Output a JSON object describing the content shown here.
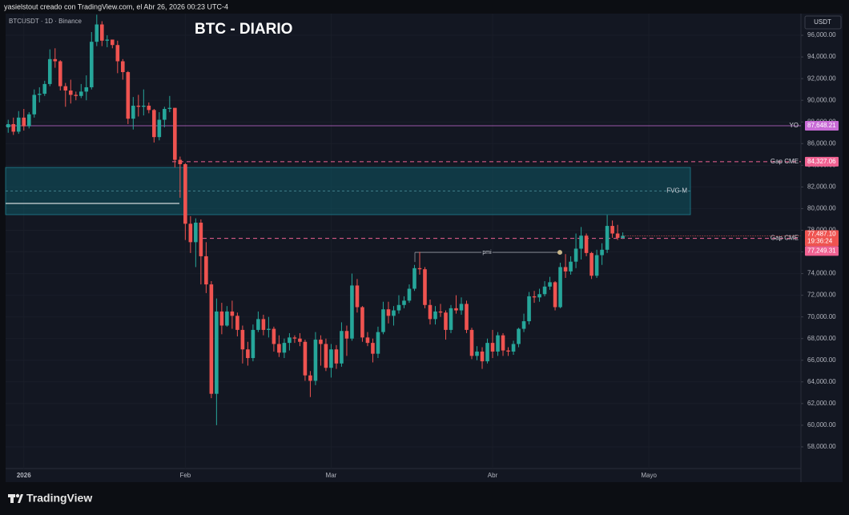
{
  "header": {
    "attribution": "yasielstout creado con TradingView.com, el Abr 26, 2026 00:23 UTC-4"
  },
  "footer": {
    "logo": "TradingView"
  },
  "chart_data": {
    "type": "candlestick",
    "symbol": "BTCUSDT · 1D · Binance",
    "title": "BTC - DIARIO",
    "currency": "USDT",
    "up_color": "#26a69a",
    "down_color": "#ef5350",
    "xlim": [
      -0.5,
      152.2
    ],
    "xticks": [
      {
        "value": 3,
        "label": "2026"
      },
      {
        "value": 34,
        "label": "Feb"
      },
      {
        "value": 62,
        "label": "Mar"
      },
      {
        "value": 93,
        "label": "Abr"
      },
      {
        "value": 123,
        "label": "Mayo"
      }
    ],
    "ylim": [
      56000,
      98000
    ],
    "yticks": [
      {
        "value": 58000,
        "label": "58,000.00"
      },
      {
        "value": 60000,
        "label": "60,000.00"
      },
      {
        "value": 62000,
        "label": "62,000.00"
      },
      {
        "value": 64000,
        "label": "64,000.00"
      },
      {
        "value": 66000,
        "label": "66,000.00"
      },
      {
        "value": 68000,
        "label": "68,000.00"
      },
      {
        "value": 70000,
        "label": "70,000.00"
      },
      {
        "value": 72000,
        "label": "72,000.00"
      },
      {
        "value": 74000,
        "label": "74,000.00"
      },
      {
        "value": 76000,
        "label": "76,000.00"
      },
      {
        "value": 78000,
        "label": "78,000.00"
      },
      {
        "value": 80000,
        "label": "80,000.00"
      },
      {
        "value": 82000,
        "label": "82,000.00"
      },
      {
        "value": 84000,
        "label": "84,000.00"
      },
      {
        "value": 86000,
        "label": "86,000.00"
      },
      {
        "value": 88000,
        "label": "88,000.00"
      },
      {
        "value": 90000,
        "label": "90,000.00"
      },
      {
        "value": 92000,
        "label": "92,000.00"
      },
      {
        "value": 94000,
        "label": "94,000.00"
      },
      {
        "value": 96000,
        "label": "96,000.00"
      }
    ],
    "grid": true,
    "open": [
      87500,
      87800,
      87100,
      88400,
      87600,
      88700,
      90500,
      90600,
      91500,
      93800,
      93600,
      91300,
      90900,
      90500,
      90400,
      90800,
      91200,
      95400,
      97000,
      95500,
      95600,
      95100,
      93600,
      92600,
      88300,
      89500,
      89400,
      89500,
      89100,
      86600,
      88200,
      89200,
      89300,
      84500,
      84100,
      78600,
      76900,
      78700,
      75600,
      73000,
      62900,
      70500,
      69200,
      70500,
      70100,
      68800,
      67000,
      66200,
      68800,
      69800,
      68800,
      68900,
      67500,
      66700,
      67600,
      68100,
      68000,
      67700,
      64600,
      64100,
      67900,
      67500,
      65300,
      67000,
      65700,
      68700,
      68000,
      72900,
      70900,
      68100,
      67600,
      66600,
      68600,
      70700,
      70100,
      70600,
      71100,
      71500,
      72600,
      74500,
      74400,
      71100,
      69800,
      70500,
      70400,
      68800,
      70800,
      70600,
      71200,
      68800,
      66400,
      66800,
      65900,
      67600,
      66800,
      68300,
      66900,
      66800,
      67500,
      68900,
      69600,
      71900,
      71800,
      72100,
      72800,
      73200,
      70900,
      74600,
      74200,
      75100,
      76300,
      77500,
      75900,
      73800,
      75700,
      76200,
      78400,
      77700,
      77300
    ],
    "high": [
      88200,
      88400,
      89000,
      89200,
      88900,
      91000,
      91200,
      91800,
      94700,
      94800,
      93700,
      91600,
      91900,
      90800,
      91500,
      92300,
      96300,
      97900,
      97300,
      96000,
      95600,
      95500,
      93800,
      92700,
      90300,
      90500,
      91000,
      89800,
      89200,
      88900,
      89400,
      90400,
      89300,
      84800,
      84200,
      79300,
      79100,
      79000,
      76900,
      73300,
      71700,
      71300,
      71000,
      71500,
      70400,
      69200,
      67700,
      69300,
      70500,
      70200,
      70000,
      69100,
      68300,
      68000,
      68500,
      68300,
      68500,
      67900,
      65000,
      68600,
      68300,
      68000,
      67500,
      67400,
      69500,
      69200,
      74000,
      73500,
      71000,
      68600,
      68000,
      69100,
      71400,
      71400,
      71000,
      72000,
      71900,
      73000,
      74800,
      76000,
      74600,
      71600,
      71000,
      71200,
      70600,
      71100,
      72000,
      71800,
      71500,
      69000,
      67300,
      67200,
      68000,
      68800,
      68600,
      68500,
      67200,
      67800,
      69000,
      70300,
      72300,
      72400,
      72600,
      73300,
      73700,
      73300,
      75000,
      75800,
      75600,
      77700,
      78300,
      77700,
      76000,
      76200,
      76800,
      79400,
      78900,
      78500,
      77800
    ],
    "low": [
      87000,
      86800,
      86900,
      87200,
      87400,
      88400,
      89800,
      90400,
      91300,
      93000,
      90900,
      89400,
      89700,
      90000,
      90200,
      90000,
      91000,
      95000,
      95000,
      94900,
      94800,
      92500,
      91900,
      87800,
      87300,
      88500,
      88600,
      88800,
      86100,
      86300,
      87500,
      88900,
      83800,
      81000,
      77100,
      75900,
      74600,
      73000,
      72200,
      62500,
      60000,
      68400,
      69100,
      68900,
      68200,
      65700,
      65500,
      65900,
      68600,
      68300,
      68100,
      66800,
      66300,
      66200,
      66900,
      67600,
      67300,
      64100,
      62600,
      63700,
      65500,
      65000,
      64400,
      65200,
      65400,
      66400,
      67800,
      70400,
      67700,
      67300,
      65800,
      66200,
      68400,
      69400,
      69200,
      70300,
      70800,
      71300,
      72400,
      73900,
      70800,
      69300,
      69300,
      70000,
      67900,
      68500,
      70300,
      70200,
      68500,
      66100,
      66000,
      65200,
      65700,
      66200,
      66400,
      66400,
      66400,
      66500,
      67200,
      68600,
      69300,
      71300,
      71400,
      71900,
      72500,
      70600,
      70800,
      73600,
      73900,
      74500,
      75300,
      75600,
      73500,
      73600,
      74800,
      75900,
      77300,
      77100,
      77200
    ],
    "close": [
      87800,
      87100,
      88400,
      87600,
      88700,
      90500,
      90600,
      91500,
      93800,
      93600,
      91300,
      90900,
      90500,
      90400,
      90800,
      91200,
      95400,
      97000,
      95500,
      95600,
      95100,
      93600,
      92600,
      88300,
      89500,
      89400,
      89500,
      89100,
      86600,
      88200,
      89200,
      89300,
      84500,
      84100,
      78600,
      76900,
      78700,
      75600,
      73000,
      62900,
      70500,
      69200,
      70500,
      70100,
      68800,
      67000,
      66200,
      68800,
      69800,
      68800,
      68900,
      67500,
      66700,
      67600,
      68100,
      68000,
      67700,
      64600,
      64100,
      67900,
      67500,
      65300,
      67000,
      65700,
      68700,
      68000,
      72900,
      70900,
      68100,
      67600,
      66600,
      68600,
      70700,
      70100,
      70600,
      71100,
      71500,
      72600,
      74500,
      74400,
      71100,
      69800,
      70500,
      70400,
      68800,
      70800,
      70600,
      71200,
      68800,
      66400,
      66800,
      65900,
      67600,
      66800,
      68300,
      66900,
      66800,
      67500,
      68900,
      69600,
      71900,
      71800,
      72100,
      72800,
      73200,
      70900,
      74600,
      74200,
      75100,
      76300,
      77500,
      75900,
      73800,
      75700,
      76200,
      78400,
      77700,
      77300,
      77487.1
    ],
    "last_price": {
      "label": "77,487.10",
      "countdown": "19:36:24"
    },
    "levels": [
      {
        "name": "YO",
        "value": 87648.21,
        "label": "87,648.21",
        "color": "#c86bd6",
        "style": "solid"
      },
      {
        "name": "Gap CME",
        "value": 84327.06,
        "label": "84,327.06",
        "color": "#f06292",
        "style": "dashed"
      },
      {
        "name": "Gap CME",
        "value": 77249.31,
        "label": "77,249.31",
        "color": "#f06292",
        "style": "dashed"
      }
    ],
    "zone": {
      "name": "FVG-M",
      "top": 83800,
      "bottom": 79440,
      "color": "#0f5663"
    },
    "pmi": {
      "name": "pmi",
      "value": 75960
    }
  }
}
